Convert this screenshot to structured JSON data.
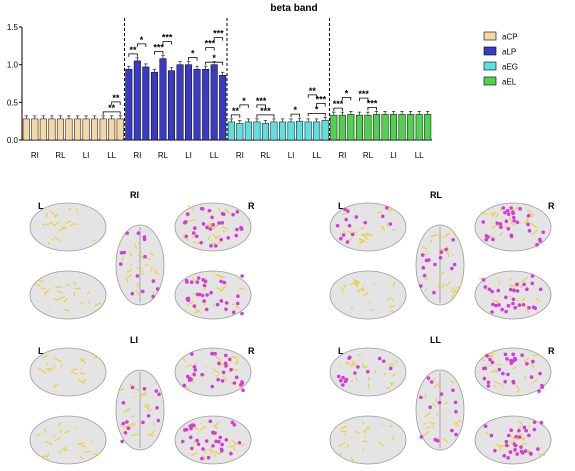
{
  "chart_data": {
    "type": "bar",
    "title": "beta band",
    "xlabel": "",
    "ylabel": "",
    "ylim": [
      0,
      1.5
    ],
    "yticks": [
      "0.0",
      "0.5",
      "1.0",
      "1.5"
    ],
    "groups": [
      "aCP",
      "aLP",
      "aEG",
      "aEL"
    ],
    "categories": [
      "RI",
      "RL",
      "LI",
      "LL"
    ],
    "series": [
      {
        "name": "aCP",
        "color": "#f3d7a4",
        "values": [
          [
            0.28,
            0.28,
            0.28
          ],
          [
            0.28,
            0.28,
            0.28
          ],
          [
            0.28,
            0.28,
            0.28
          ],
          [
            0.28,
            0.28,
            0.28
          ]
        ]
      },
      {
        "name": "aLP",
        "color": "#3a3bc4",
        "values": [
          [
            0.94,
            1.05,
            0.97
          ],
          [
            0.9,
            1.08,
            0.92
          ],
          [
            1.0,
            1.0,
            0.94
          ],
          [
            0.94,
            1.0,
            0.86
          ]
        ]
      },
      {
        "name": "aEG",
        "color": "#5fe0e0",
        "values": [
          [
            0.24,
            0.22,
            0.24
          ],
          [
            0.24,
            0.22,
            0.24
          ],
          [
            0.24,
            0.24,
            0.25
          ],
          [
            0.24,
            0.24,
            0.26
          ]
        ]
      },
      {
        "name": "aEL",
        "color": "#4fd34f",
        "values": [
          [
            0.33,
            0.33,
            0.34
          ],
          [
            0.33,
            0.33,
            0.34
          ],
          [
            0.34,
            0.34,
            0.34
          ],
          [
            0.34,
            0.34,
            0.34
          ]
        ]
      }
    ],
    "significance": [
      {
        "group": 0,
        "category": 3,
        "from": 0,
        "to": 2,
        "label": "**"
      },
      {
        "group": 0,
        "category": 3,
        "from": 1,
        "to": 2,
        "label": "**"
      },
      {
        "group": 1,
        "category": 0,
        "from": 0,
        "to": 1,
        "label": "**"
      },
      {
        "group": 1,
        "category": 0,
        "from": 1,
        "to": 2,
        "label": "*"
      },
      {
        "group": 1,
        "category": 1,
        "from": 0,
        "to": 1,
        "label": "***"
      },
      {
        "group": 1,
        "category": 1,
        "from": 1,
        "to": 2,
        "label": "***"
      },
      {
        "group": 1,
        "category": 2,
        "from": 1,
        "to": 2,
        "label": "*"
      },
      {
        "group": 1,
        "category": 3,
        "from": 0,
        "to": 2,
        "label": "*"
      },
      {
        "group": 1,
        "category": 3,
        "from": 0,
        "to": 1,
        "label": "***"
      },
      {
        "group": 1,
        "category": 3,
        "from": 1,
        "to": 2,
        "label": "***"
      },
      {
        "group": 2,
        "category": 0,
        "from": 0,
        "to": 1,
        "label": "**"
      },
      {
        "group": 2,
        "category": 0,
        "from": 1,
        "to": 2,
        "label": "*"
      },
      {
        "group": 2,
        "category": 1,
        "from": 0,
        "to": 2,
        "label": "***"
      },
      {
        "group": 2,
        "category": 1,
        "from": 0,
        "to": 1,
        "label": "***"
      },
      {
        "group": 2,
        "category": 2,
        "from": 1,
        "to": 2,
        "label": "*"
      },
      {
        "group": 2,
        "category": 3,
        "from": 0,
        "to": 2,
        "label": "*"
      },
      {
        "group": 2,
        "category": 3,
        "from": 1,
        "to": 2,
        "label": "***"
      },
      {
        "group": 2,
        "category": 3,
        "from": 0,
        "to": 1,
        "label": "**"
      },
      {
        "group": 3,
        "category": 0,
        "from": 0,
        "to": 1,
        "label": "***"
      },
      {
        "group": 3,
        "category": 0,
        "from": 1,
        "to": 2,
        "label": "*"
      },
      {
        "group": 3,
        "category": 1,
        "from": 1,
        "to": 2,
        "label": "***"
      },
      {
        "group": 3,
        "category": 1,
        "from": 0,
        "to": 1,
        "label": "***"
      }
    ],
    "legend_position": "top-right",
    "grid": false
  },
  "brain_panels": [
    {
      "title": "RI",
      "left_label": "L",
      "right_label": "R"
    },
    {
      "title": "RL",
      "left_label": "L",
      "right_label": "R"
    },
    {
      "title": "LI",
      "left_label": "L",
      "right_label": "R"
    },
    {
      "title": "LL",
      "left_label": "L",
      "right_label": "R"
    }
  ],
  "colors": {
    "axis": "#000000",
    "brain": "#d9d9d9",
    "edges": "#e8d23a",
    "nodes": "#d63ad6"
  }
}
